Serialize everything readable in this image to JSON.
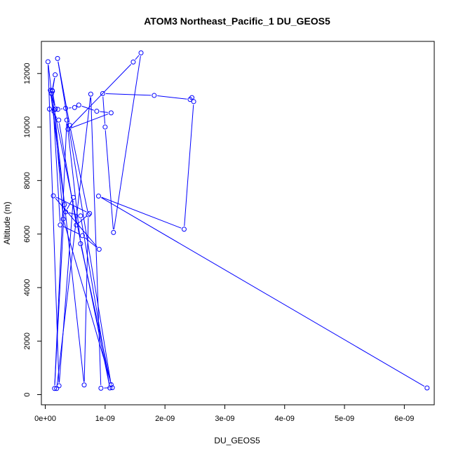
{
  "chart_data": {
    "type": "line",
    "title": "ATOM3 Northeast_Pacific_1 DU_GEOS5",
    "xlabel": "DU_GEOS5",
    "ylabel": "Altitude (m)",
    "xlim": [
      -6.5e-11,
      6.5e-09
    ],
    "ylim": [
      -380,
      13200
    ],
    "xticks": [
      0,
      1e-09,
      2e-09,
      3e-09,
      4e-09,
      5e-09,
      6e-09
    ],
    "xtick_labels": [
      "0e+00",
      "1e-09",
      "2e-09",
      "3e-09",
      "4e-09",
      "5e-09",
      "6e-09"
    ],
    "yticks": [
      0,
      2000,
      4000,
      6000,
      8000,
      10000,
      12000
    ],
    "ytick_labels": [
      "0",
      "2000",
      "4000",
      "6000",
      "8000",
      "10000",
      "12000"
    ],
    "grid": false,
    "color": "#0000ff",
    "series": [
      {
        "x": [
          6.38e-09,
          8.9e-10,
          2.32e-09,
          2.48e-09,
          2.45e-09,
          2.42e-09,
          1.82e-09,
          9.6e-10,
          1e-09,
          1.14e-09,
          1.6e-09,
          1.47e-09,
          3.8e-10,
          1.1e-09,
          8.6e-10,
          5.6e-10,
          4.9e-10,
          3.4e-10,
          2.1e-10,
          7e-11,
          2.25e-10,
          5.2e-10,
          7.4e-10,
          1.35e-10,
          9e-10,
          6.2e-10,
          2.5e-10,
          1.15e-10,
          1.65e-10,
          1.2e-10,
          1.7e-10,
          1.05e-10,
          4.5e-11,
          2.3e-10,
          4.7e-10,
          3.4e-10,
          5.9e-10,
          1.08e-09,
          8.5e-11,
          3.2e-10,
          1.55e-10,
          3.6e-10,
          5.9e-10,
          1.1e-09,
          2.05e-10,
          4.1e-10,
          7.2e-10,
          6.5e-10,
          1.5e-10,
          3e-10,
          1.12e-09,
          9.3e-10,
          7.6e-10,
          1.9e-10
        ],
        "y": [
          250,
          7420,
          6180,
          10950,
          11100,
          11030,
          11180,
          11250,
          10000,
          6060,
          12770,
          12430,
          9920,
          10530,
          10590,
          10820,
          10730,
          10700,
          10660,
          10670,
          10260,
          6340,
          6770,
          7430,
          5430,
          5940,
          6340,
          11370,
          11950,
          11340,
          10680,
          11250,
          12440,
          330,
          7370,
          6830,
          6680,
          250,
          11370,
          7100,
          230,
          10260,
          5640,
          370,
          12560,
          10060,
          6720,
          360,
          10640,
          6560,
          260,
          240,
          11230,
          230
        ]
      }
    ]
  }
}
